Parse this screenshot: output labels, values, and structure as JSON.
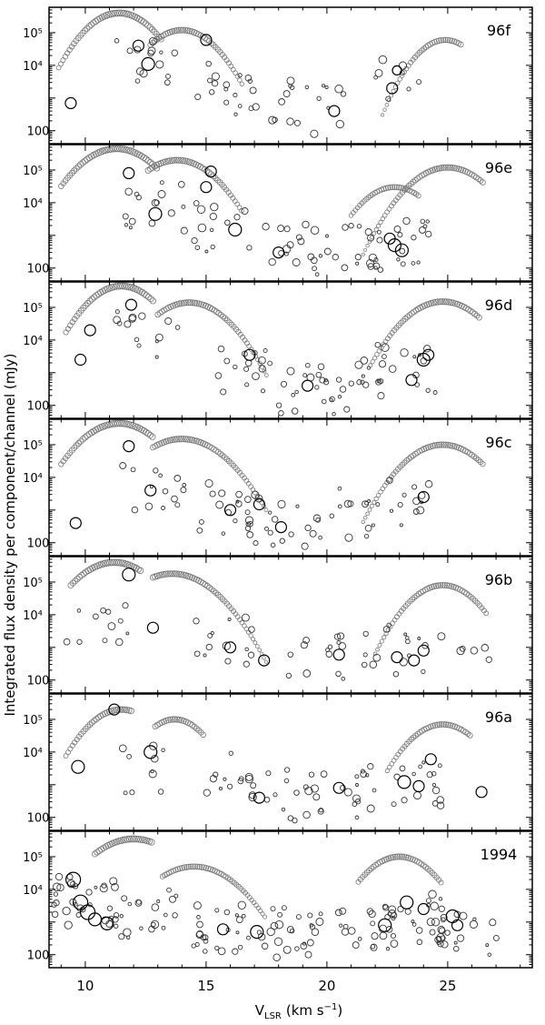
{
  "chart_data": {
    "type": "scatter",
    "xlabel_main": "V",
    "xlabel_sub": "LSR",
    "xlabel_unit": "(km s",
    "xlabel_exp": "−1",
    "xlabel_close": ")",
    "ylabel": "Integrated flux density per component/channel (mJy)",
    "xlim": [
      8.5,
      28.5
    ],
    "x_ticks": [
      10,
      15,
      20,
      25
    ],
    "y_scale": "log",
    "ylim": [
      40,
      600000
    ],
    "y_ticks": [
      {
        "value": 100,
        "label": "100"
      },
      {
        "value": 10000,
        "label": "10⁴"
      },
      {
        "value": 100000,
        "label": "10⁵"
      }
    ],
    "panels": [
      {
        "label": "96f",
        "bright": [
          {
            "vpeak": 11.4,
            "peak": 400000,
            "width": 0.9,
            "vmin": 8.9,
            "vmax": 13.2
          },
          {
            "vpeak": 14.0,
            "peak": 120000,
            "width": 0.9,
            "vmin": 12.7,
            "vmax": 16.5
          },
          {
            "vpeak": 24.9,
            "peak": 60000,
            "width": 0.8,
            "vmin": 22.3,
            "vmax": 25.6
          }
        ],
        "clusters": [
          {
            "x": 12.6,
            "y": 12000,
            "n": 14
          },
          {
            "x": 15.8,
            "y": 2500,
            "n": 12
          },
          {
            "x": 17.5,
            "y": 800,
            "n": 12
          },
          {
            "x": 19.5,
            "y": 500,
            "n": 12
          },
          {
            "x": 22.8,
            "y": 2500,
            "n": 8
          }
        ],
        "big": [
          [
            9.4,
            700,
            6
          ],
          [
            12.6,
            11000,
            7
          ],
          [
            12.2,
            40000,
            6
          ],
          [
            15.0,
            60000,
            6
          ],
          [
            20.3,
            400,
            6
          ],
          [
            22.7,
            2000,
            6
          ],
          [
            22.9,
            7000,
            5
          ]
        ]
      },
      {
        "label": "96e",
        "bright": [
          {
            "vpeak": 11.3,
            "peak": 450000,
            "width": 1.0,
            "vmin": 9.0,
            "vmax": 13.0
          },
          {
            "vpeak": 13.8,
            "peak": 200000,
            "width": 1.0,
            "vmin": 12.6,
            "vmax": 16.5
          },
          {
            "vpeak": 25.0,
            "peak": 120000,
            "width": 1.0,
            "vmin": 21.5,
            "vmax": 26.5
          },
          {
            "vpeak": 22.8,
            "peak": 30000,
            "width": 0.9,
            "vmin": 21.0,
            "vmax": 23.8
          }
        ],
        "clusters": [
          {
            "x": 12.9,
            "y": 8000,
            "n": 16
          },
          {
            "x": 15.5,
            "y": 2000,
            "n": 14
          },
          {
            "x": 18.5,
            "y": 400,
            "n": 18
          },
          {
            "x": 21.0,
            "y": 600,
            "n": 16
          },
          {
            "x": 23.0,
            "y": 500,
            "n": 18
          }
        ],
        "big": [
          [
            11.8,
            80000,
            6
          ],
          [
            12.9,
            4500,
            7
          ],
          [
            15.0,
            30000,
            6
          ],
          [
            15.2,
            90000,
            6
          ],
          [
            16.2,
            1500,
            7
          ],
          [
            18.0,
            300,
            6
          ],
          [
            22.8,
            500,
            7
          ],
          [
            23.1,
            350,
            7
          ],
          [
            22.6,
            800,
            6
          ]
        ]
      },
      {
        "label": "96d",
        "bright": [
          {
            "vpeak": 11.5,
            "peak": 450000,
            "width": 0.9,
            "vmin": 9.2,
            "vmax": 12.8
          },
          {
            "vpeak": 14.3,
            "peak": 140000,
            "width": 1.0,
            "vmin": 13.0,
            "vmax": 17.5
          },
          {
            "vpeak": 24.8,
            "peak": 150000,
            "width": 1.0,
            "vmin": 21.8,
            "vmax": 26.3
          }
        ],
        "clusters": [
          {
            "x": 12.6,
            "y": 12000,
            "n": 14
          },
          {
            "x": 16.5,
            "y": 1500,
            "n": 16
          },
          {
            "x": 19.0,
            "y": 300,
            "n": 18
          },
          {
            "x": 21.0,
            "y": 400,
            "n": 16
          },
          {
            "x": 23.3,
            "y": 1200,
            "n": 16
          }
        ],
        "big": [
          [
            11.9,
            120000,
            6
          ],
          [
            10.2,
            20000,
            6
          ],
          [
            9.8,
            2500,
            6
          ],
          [
            16.8,
            3500,
            6
          ],
          [
            19.2,
            400,
            6
          ],
          [
            24.0,
            2500,
            7
          ],
          [
            24.2,
            3500,
            6
          ],
          [
            23.5,
            600,
            6
          ]
        ]
      },
      {
        "label": "96c",
        "bright": [
          {
            "vpeak": 11.4,
            "peak": 450000,
            "width": 1.0,
            "vmin": 9.0,
            "vmax": 12.8
          },
          {
            "vpeak": 14.0,
            "peak": 150000,
            "width": 1.1,
            "vmin": 12.8,
            "vmax": 17.5
          },
          {
            "vpeak": 24.8,
            "peak": 100000,
            "width": 1.0,
            "vmin": 21.5,
            "vmax": 26.5
          }
        ],
        "clusters": [
          {
            "x": 12.8,
            "y": 5000,
            "n": 14
          },
          {
            "x": 15.8,
            "y": 1200,
            "n": 16
          },
          {
            "x": 18.0,
            "y": 400,
            "n": 16
          },
          {
            "x": 20.5,
            "y": 800,
            "n": 14
          },
          {
            "x": 23.0,
            "y": 1500,
            "n": 16
          }
        ],
        "big": [
          [
            9.6,
            400,
            6
          ],
          [
            11.8,
            90000,
            6
          ],
          [
            12.7,
            4000,
            6
          ],
          [
            16.0,
            1000,
            6
          ],
          [
            17.2,
            1500,
            6
          ],
          [
            18.1,
            300,
            6
          ],
          [
            24.0,
            2500,
            6
          ]
        ]
      },
      {
        "label": "96b",
        "bright": [
          {
            "vpeak": 11.2,
            "peak": 400000,
            "width": 1.0,
            "vmin": 9.4,
            "vmax": 12.3
          },
          {
            "vpeak": 13.6,
            "peak": 180000,
            "width": 1.1,
            "vmin": 12.8,
            "vmax": 17.5
          },
          {
            "vpeak": 24.8,
            "peak": 80000,
            "width": 0.9,
            "vmin": 22.0,
            "vmax": 26.6
          }
        ],
        "clusters": [
          {
            "x": 10.5,
            "y": 8000,
            "n": 12
          },
          {
            "x": 15.8,
            "y": 1500,
            "n": 14
          },
          {
            "x": 19.5,
            "y": 600,
            "n": 14
          },
          {
            "x": 22.8,
            "y": 800,
            "n": 16
          },
          {
            "x": 26.0,
            "y": 400,
            "n": 6
          }
        ],
        "big": [
          [
            11.8,
            170000,
            7
          ],
          [
            12.8,
            4000,
            6
          ],
          [
            16.0,
            1000,
            6
          ],
          [
            17.4,
            400,
            6
          ],
          [
            20.5,
            600,
            6
          ],
          [
            22.9,
            500,
            6
          ],
          [
            23.6,
            400,
            6
          ],
          [
            24.0,
            800,
            6
          ]
        ]
      },
      {
        "label": "96a",
        "bright": [
          {
            "vpeak": 11.5,
            "peak": 200000,
            "width": 0.9,
            "vmin": 9.2,
            "vmax": 11.9
          },
          {
            "vpeak": 13.7,
            "peak": 100000,
            "width": 0.8,
            "vmin": 12.9,
            "vmax": 14.9
          },
          {
            "vpeak": 24.8,
            "peak": 70000,
            "width": 0.9,
            "vmin": 22.5,
            "vmax": 26.0
          }
        ],
        "clusters": [
          {
            "x": 12.7,
            "y": 3000,
            "n": 10
          },
          {
            "x": 16.0,
            "y": 1500,
            "n": 14
          },
          {
            "x": 18.5,
            "y": 500,
            "n": 16
          },
          {
            "x": 21.0,
            "y": 600,
            "n": 16
          },
          {
            "x": 23.5,
            "y": 1000,
            "n": 16
          }
        ],
        "big": [
          [
            9.7,
            3500,
            7
          ],
          [
            11.2,
            200000,
            6
          ],
          [
            12.7,
            10000,
            7
          ],
          [
            17.2,
            400,
            6
          ],
          [
            20.5,
            800,
            6
          ],
          [
            23.2,
            1200,
            7
          ],
          [
            23.8,
            900,
            6
          ],
          [
            24.3,
            6000,
            6
          ],
          [
            26.4,
            600,
            6
          ]
        ]
      },
      {
        "label": "1994",
        "bright": [
          {
            "vpeak": 12.0,
            "peak": 350000,
            "width": 1.1,
            "vmin": 10.4,
            "vmax": 12.8
          },
          {
            "vpeak": 14.5,
            "peak": 50000,
            "width": 1.1,
            "vmin": 13.2,
            "vmax": 17.5
          },
          {
            "vpeak": 23.0,
            "peak": 100000,
            "width": 0.9,
            "vmin": 21.3,
            "vmax": 24.8
          }
        ],
        "clusters": [
          {
            "x": 10.0,
            "y": 5000,
            "n": 30
          },
          {
            "x": 12.5,
            "y": 2000,
            "n": 22
          },
          {
            "x": 15.5,
            "y": 600,
            "n": 24
          },
          {
            "x": 18.5,
            "y": 500,
            "n": 26
          },
          {
            "x": 21.5,
            "y": 600,
            "n": 24
          },
          {
            "x": 23.8,
            "y": 1200,
            "n": 28
          },
          {
            "x": 25.8,
            "y": 500,
            "n": 14
          }
        ],
        "big": [
          [
            9.5,
            20000,
            8
          ],
          [
            9.8,
            4000,
            8
          ],
          [
            10.1,
            2000,
            8
          ],
          [
            10.4,
            1200,
            7
          ],
          [
            10.9,
            900,
            7
          ],
          [
            15.7,
            600,
            6
          ],
          [
            17.1,
            500,
            7
          ],
          [
            22.4,
            800,
            7
          ],
          [
            23.3,
            4000,
            7
          ],
          [
            24.0,
            2500,
            6
          ],
          [
            25.2,
            1500,
            7
          ],
          [
            25.4,
            800,
            6
          ]
        ]
      }
    ]
  }
}
